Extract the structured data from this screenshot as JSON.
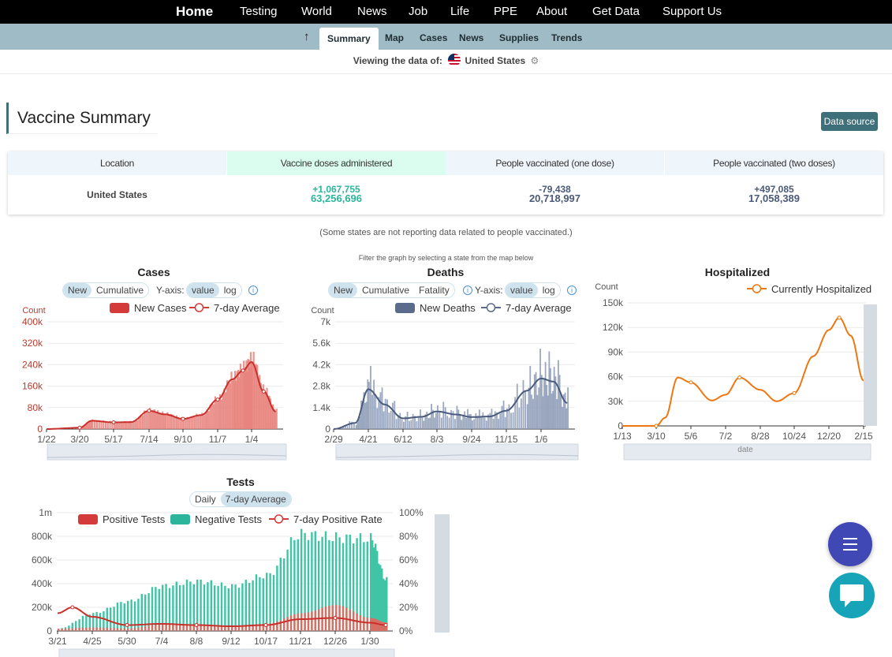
{
  "topnav": {
    "home": "Home",
    "items": [
      "Testing",
      "World",
      "News",
      "Job",
      "Life",
      "PPE",
      "About",
      "Get Data",
      "Support Us"
    ]
  },
  "subnav": {
    "up_icon": "up-arrow-icon",
    "tabs": [
      "Summary",
      "Map",
      "Cases",
      "News",
      "Supplies",
      "Trends"
    ],
    "active": "Summary"
  },
  "viewing": {
    "prefix": "Viewing the data of:",
    "location": "United States"
  },
  "vaccine": {
    "title": "Vaccine Summary",
    "data_source": "Data source",
    "headers": [
      "Location",
      "Vaccine doses administered",
      "People vaccinated (one dose)",
      "People vaccinated (two doses)"
    ],
    "row": {
      "location": "United States",
      "doses_delta": "+1,067,755",
      "doses_total": "63,256,696",
      "one_delta": "-79,438",
      "one_total": "20,718,997",
      "two_delta": "+497,085",
      "two_total": "17,058,389"
    },
    "note": "(Some states are not reporting data related to people vaccinated.)"
  },
  "filter_note": "Filter the graph by selecting a state from the map below",
  "colors": {
    "cases": "#d43a3a",
    "deaths": "#5a6b8c",
    "hosp": "#ee7711",
    "neg": "#2bb59a",
    "accent": "#3f6f78"
  },
  "controls": {
    "new": "New",
    "cumulative": "Cumulative",
    "fatality": "Fatality",
    "yaxis": "Y-axis:",
    "value": "value",
    "log": "log",
    "daily": "Daily",
    "avg": "7-day Average",
    "count": "Count",
    "date": "date"
  },
  "chart_data": [
    {
      "type": "bar",
      "title": "Cases",
      "ylabel": "Count",
      "ylim": [
        0,
        400000
      ],
      "yticks": [
        "0",
        "80k",
        "160k",
        "240k",
        "320k",
        "400k"
      ],
      "xticks": [
        "1/22",
        "3/20",
        "5/17",
        "7/14",
        "9/10",
        "11/7",
        "1/4"
      ],
      "legend": [
        "New Cases",
        "7-day Average"
      ],
      "series": [
        {
          "name": "7-day Average",
          "x": [
            "1/22",
            "3/20",
            "4/10",
            "5/17",
            "6/15",
            "7/14",
            "8/10",
            "9/10",
            "10/10",
            "11/7",
            "12/1",
            "12/20",
            "1/4",
            "1/25",
            "2/15"
          ],
          "values": [
            0,
            5000,
            31000,
            25000,
            26000,
            68000,
            55000,
            38000,
            52000,
            110000,
            185000,
            218000,
            250000,
            140000,
            65000
          ]
        }
      ]
    },
    {
      "type": "bar",
      "title": "Deaths",
      "ylabel": "Count",
      "ylim": [
        0,
        7000
      ],
      "yticks": [
        "0",
        "1.4k",
        "2.8k",
        "4.2k",
        "5.6k",
        "7k"
      ],
      "xticks": [
        "2/29",
        "4/21",
        "6/12",
        "8/3",
        "9/24",
        "11/15",
        "1/6"
      ],
      "legend": [
        "New Deaths",
        "7-day Average"
      ],
      "series": [
        {
          "name": "7-day Average",
          "x": [
            "2/29",
            "4/1",
            "4/21",
            "5/15",
            "6/12",
            "7/10",
            "8/3",
            "9/1",
            "9/24",
            "10/20",
            "11/15",
            "12/15",
            "1/6",
            "1/25",
            "2/15"
          ],
          "values": [
            0,
            400,
            2600,
            1600,
            700,
            800,
            1150,
            950,
            780,
            820,
            1200,
            2500,
            3300,
            3100,
            1700
          ]
        }
      ]
    },
    {
      "type": "line",
      "title": "Hospitalized",
      "ylabel": "Count",
      "ylim": [
        0,
        150000
      ],
      "yticks": [
        "0",
        "30k",
        "60k",
        "90k",
        "120k",
        "150k"
      ],
      "xticks": [
        "1/13",
        "3/10",
        "5/6",
        "7/2",
        "8/28",
        "10/24",
        "12/20",
        "2/15"
      ],
      "legend": [
        "Currently Hospitalized"
      ],
      "series": [
        {
          "name": "Currently Hospitalized",
          "x": [
            "1/13",
            "3/10",
            "3/25",
            "4/15",
            "5/6",
            "6/10",
            "7/2",
            "7/25",
            "8/28",
            "9/25",
            "10/24",
            "11/25",
            "12/20",
            "1/6",
            "1/25",
            "2/15"
          ],
          "values": [
            0,
            0,
            10000,
            59000,
            53000,
            31000,
            38000,
            59000,
            44000,
            30000,
            40000,
            85000,
            117000,
            132000,
            110000,
            55000
          ]
        }
      ]
    },
    {
      "type": "bar",
      "title": "Tests",
      "ylim": [
        0,
        1000000
      ],
      "yticks": [
        "0",
        "200k",
        "400k",
        "600k",
        "800k",
        "1m"
      ],
      "y2ticks": [
        "0%",
        "20%",
        "40%",
        "60%",
        "80%",
        "100%"
      ],
      "xticks": [
        "3/21",
        "4/25",
        "5/30",
        "7/4",
        "8/8",
        "9/12",
        "10/17",
        "11/21",
        "12/26",
        "1/30"
      ],
      "legend": [
        "Positive Tests",
        "Negative Tests",
        "7-day Positive Rate"
      ],
      "series": [
        {
          "name": "Negative Tests",
          "x": [
            "3/21",
            "4/25",
            "5/30",
            "7/4",
            "8/8",
            "9/12",
            "10/17",
            "11/21",
            "12/26",
            "1/30",
            "2/15"
          ],
          "values": [
            20000,
            150000,
            250000,
            380000,
            420000,
            380000,
            470000,
            820000,
            790000,
            780000,
            430000
          ]
        },
        {
          "name": "Positive Tests",
          "x": [
            "3/21",
            "4/25",
            "5/30",
            "7/4",
            "8/8",
            "9/12",
            "10/17",
            "11/21",
            "12/26",
            "1/30",
            "2/15"
          ],
          "values": [
            20000,
            30000,
            22000,
            55000,
            50000,
            38000,
            60000,
            150000,
            220000,
            110000,
            70000
          ]
        },
        {
          "name": "7-day Positive Rate",
          "x": [
            "3/21",
            "4/5",
            "4/25",
            "5/30",
            "7/4",
            "8/8",
            "9/12",
            "10/17",
            "11/21",
            "12/26",
            "1/30",
            "2/15"
          ],
          "values": [
            15,
            20,
            12,
            5,
            6,
            5,
            4,
            5,
            10,
            11,
            7,
            5
          ]
        }
      ]
    }
  ]
}
